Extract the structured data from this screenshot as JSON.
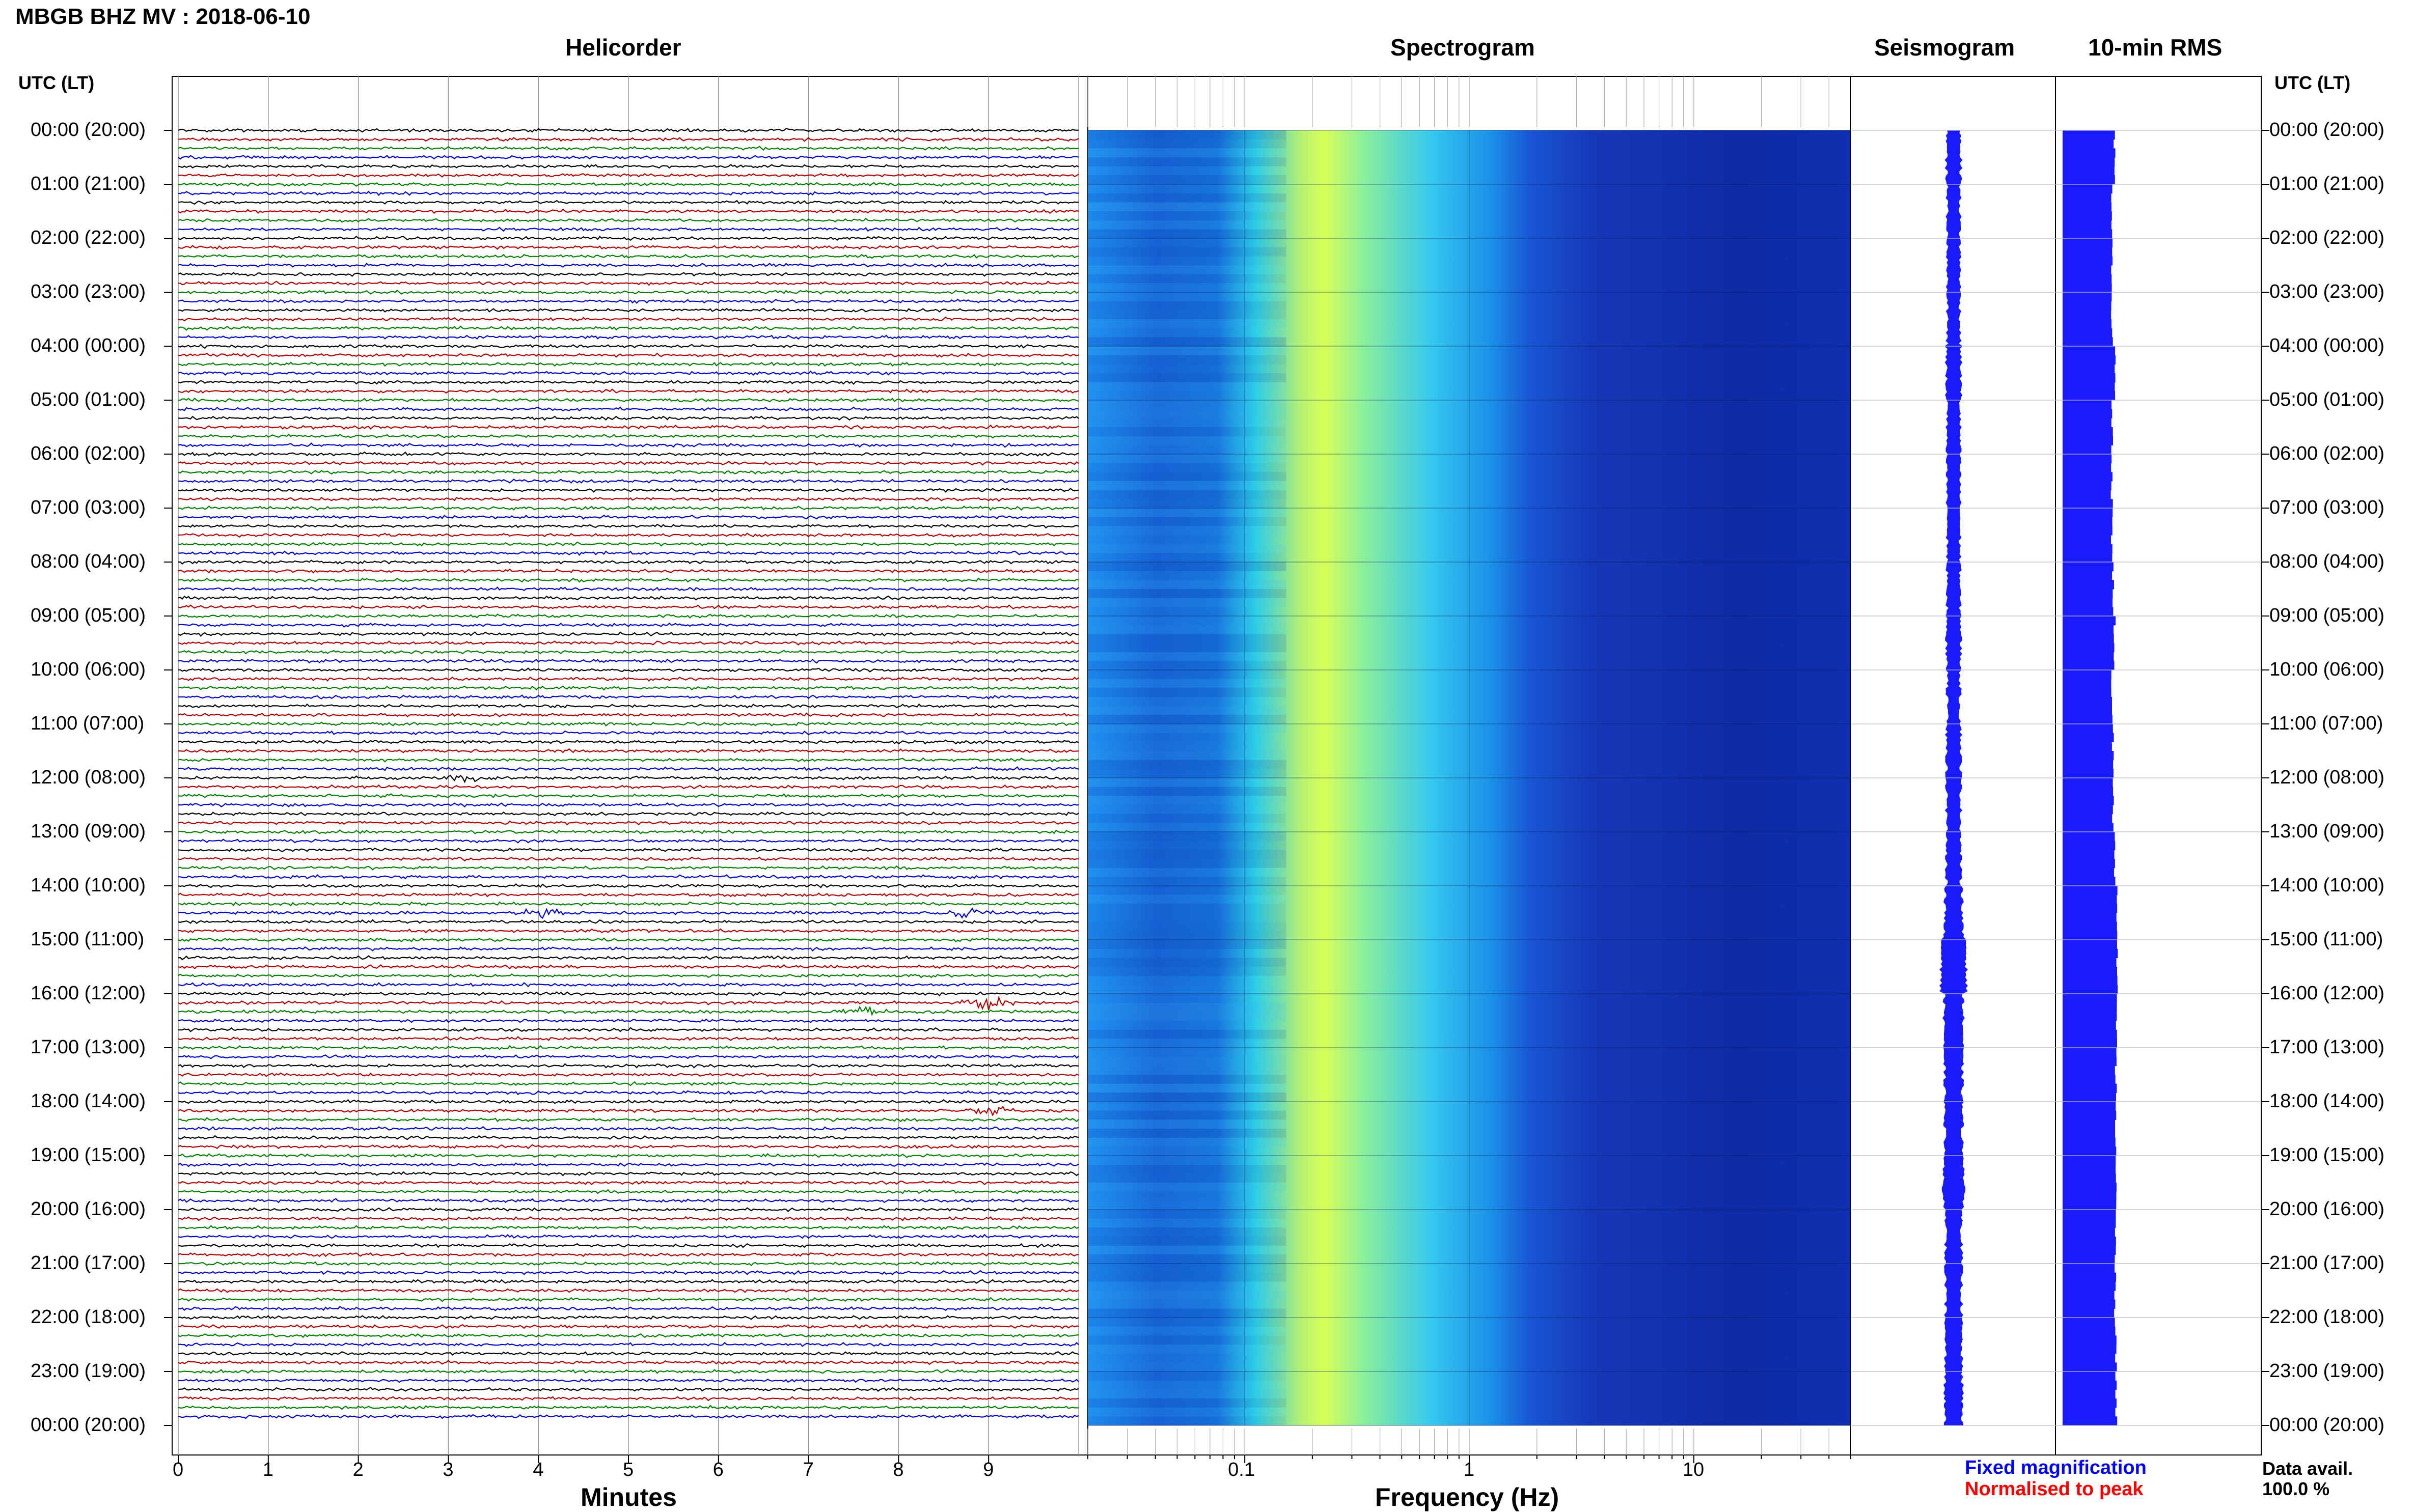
{
  "header": {
    "title": "MBGB BHZ MV : 2018-06-10",
    "left_axis_label": "UTC (LT)",
    "right_axis_label": "UTC (LT)"
  },
  "panels": {
    "helicorder": "Helicorder",
    "spectrogram": "Spectrogram",
    "seismogram": "Seismogram",
    "rms": "10-min RMS"
  },
  "time_labels": [
    "00:00 (20:00)",
    "01:00 (21:00)",
    "02:00 (22:00)",
    "03:00 (23:00)",
    "04:00 (00:00)",
    "05:00 (01:00)",
    "06:00 (02:00)",
    "07:00 (03:00)",
    "08:00 (04:00)",
    "09:00 (05:00)",
    "10:00 (06:00)",
    "11:00 (07:00)",
    "12:00 (08:00)",
    "13:00 (09:00)",
    "14:00 (10:00)",
    "15:00 (11:00)",
    "16:00 (12:00)",
    "17:00 (13:00)",
    "18:00 (14:00)",
    "19:00 (15:00)",
    "20:00 (16:00)",
    "21:00 (17:00)",
    "22:00 (18:00)",
    "23:00 (19:00)",
    "00:00 (20:00)"
  ],
  "legend": {
    "fixed": "Fixed magnification",
    "normalised": "Normalised to peak",
    "data_avail_label": "Data avail.",
    "data_avail_value": "100.0 %"
  },
  "colors": {
    "trace_cycle": [
      "#000000",
      "#b00000",
      "#008000",
      "#0000cc"
    ],
    "seismogram": "#1a1aff",
    "rms": "#1a1aff",
    "legend_fixed": "#0000ff",
    "legend_normalised": "#ff0000",
    "spectrogram_low": "#0a1a9e",
    "spectrogram_high": "#d8ff4a"
  },
  "chart_data": [
    {
      "type": "line",
      "panel": "helicorder",
      "title": "Helicorder",
      "xlabel": "Minutes",
      "x_ticks": [
        "0",
        "1",
        "2",
        "3",
        "4",
        "5",
        "6",
        "7",
        "8",
        "9"
      ],
      "xlim": [
        0,
        10
      ],
      "lines_per_hour": 6,
      "minutes_per_line": 10,
      "hours": 24,
      "trace_color_cycle": [
        "black",
        "red",
        "green",
        "blue"
      ],
      "events": [
        {
          "hour": 14,
          "line": 3,
          "minute": 4.0,
          "amplitude": 0.8
        },
        {
          "hour": 14,
          "line": 3,
          "minute": 8.8,
          "amplitude": 0.9
        },
        {
          "hour": 16,
          "line": 1,
          "minute": 9.0,
          "amplitude": 1.0
        },
        {
          "hour": 16,
          "line": 2,
          "minute": 7.6,
          "amplitude": 0.7
        },
        {
          "hour": 18,
          "line": 1,
          "minute": 9.0,
          "amplitude": 0.6
        },
        {
          "hour": 12,
          "line": 0,
          "minute": 3.2,
          "amplitude": 0.5
        }
      ]
    },
    {
      "type": "heatmap",
      "panel": "spectrogram",
      "title": "Spectrogram",
      "xlabel": "Frequency (Hz)",
      "x_scale": "log",
      "xlim": [
        0.02,
        50
      ],
      "x_ticks": [
        "0.1",
        "1",
        "10"
      ],
      "peak_band_hz": [
        0.2,
        0.4
      ],
      "rows_per_hour": 6
    },
    {
      "type": "line",
      "panel": "seismogram",
      "title": "Seismogram",
      "hours": 24,
      "amplitude_by_hour": [
        0.35,
        0.3,
        0.3,
        0.3,
        0.35,
        0.3,
        0.3,
        0.3,
        0.3,
        0.35,
        0.3,
        0.35,
        0.35,
        0.35,
        0.45,
        0.7,
        0.5,
        0.45,
        0.45,
        0.55,
        0.4,
        0.4,
        0.4,
        0.45
      ]
    },
    {
      "type": "bar",
      "panel": "rms",
      "title": "10-min RMS",
      "categories": [
        "00",
        "01",
        "02",
        "03",
        "04",
        "05",
        "06",
        "07",
        "08",
        "09",
        "10",
        "11",
        "12",
        "13",
        "14",
        "15",
        "16",
        "17",
        "18",
        "19",
        "20",
        "21",
        "22",
        "23"
      ],
      "values": [
        0.95,
        0.9,
        0.9,
        0.9,
        0.95,
        0.9,
        0.9,
        0.9,
        0.92,
        0.95,
        0.9,
        0.92,
        0.92,
        0.95,
        0.98,
        1.0,
        0.98,
        0.97,
        0.97,
        0.97,
        0.96,
        0.96,
        0.97,
        0.98
      ]
    }
  ]
}
